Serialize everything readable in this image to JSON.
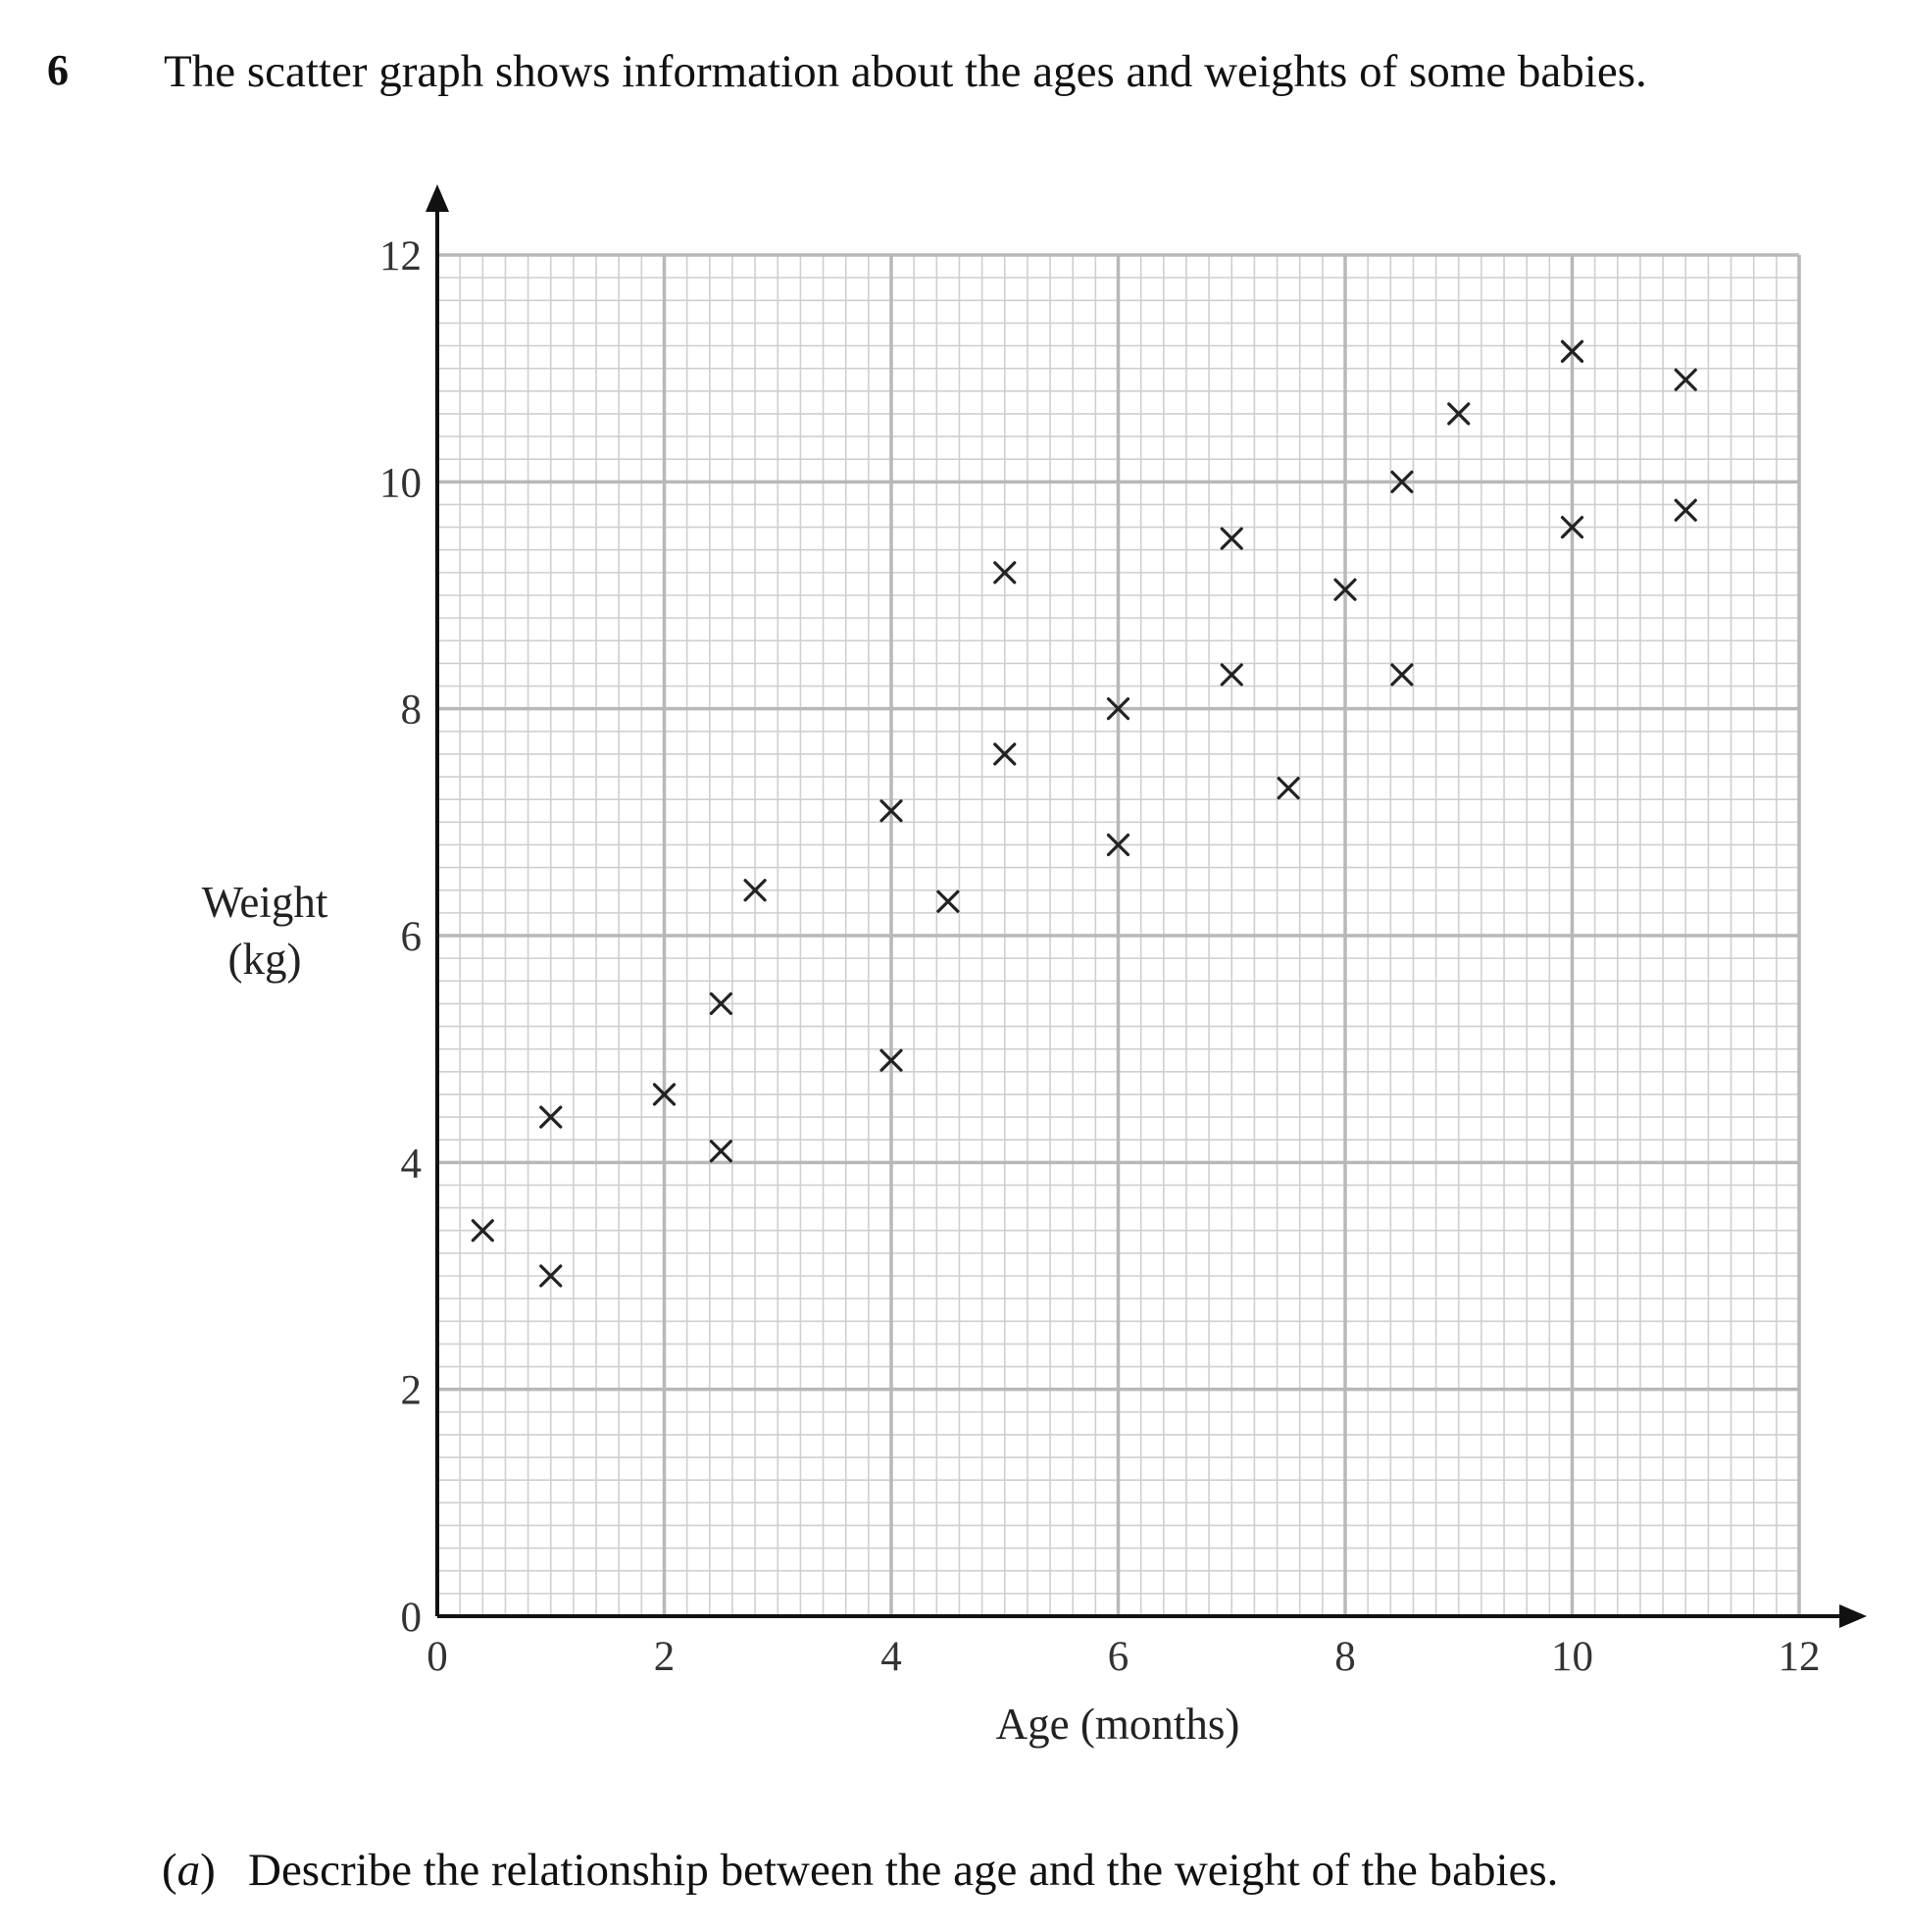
{
  "question": {
    "number": "6",
    "text": "The scatter graph shows information about the ages and weights of some babies."
  },
  "part_a": {
    "label_open": "(",
    "label_letter": "a",
    "label_close": ")",
    "text": "Describe the relationship between the age and the weight of the babies."
  },
  "chart_data": {
    "type": "scatter",
    "title": "",
    "xlabel": "Age (months)",
    "ylabel_lines": [
      "Weight",
      "(kg)"
    ],
    "xlim": [
      0,
      12
    ],
    "ylim": [
      0,
      12
    ],
    "xticks": [
      0,
      2,
      4,
      6,
      8,
      10,
      12
    ],
    "yticks": [
      0,
      2,
      4,
      6,
      8,
      10,
      12
    ],
    "grid": true,
    "marker": "cross",
    "colors": {
      "major_grid": "#b8b8b8",
      "minor_grid": "#cfcfcf",
      "axis": "#111111",
      "marker": "#222222"
    },
    "points": [
      {
        "x": 0.4,
        "y": 3.4
      },
      {
        "x": 1.0,
        "y": 4.4
      },
      {
        "x": 1.0,
        "y": 3.0
      },
      {
        "x": 2.0,
        "y": 4.6
      },
      {
        "x": 2.5,
        "y": 5.4
      },
      {
        "x": 2.5,
        "y": 4.1
      },
      {
        "x": 2.8,
        "y": 6.4
      },
      {
        "x": 4.0,
        "y": 7.1
      },
      {
        "x": 4.0,
        "y": 4.9
      },
      {
        "x": 4.5,
        "y": 6.3
      },
      {
        "x": 5.0,
        "y": 9.2
      },
      {
        "x": 5.0,
        "y": 7.6
      },
      {
        "x": 6.0,
        "y": 8.0
      },
      {
        "x": 6.0,
        "y": 6.8
      },
      {
        "x": 7.0,
        "y": 9.5
      },
      {
        "x": 7.0,
        "y": 8.3
      },
      {
        "x": 7.5,
        "y": 7.3
      },
      {
        "x": 8.0,
        "y": 9.05
      },
      {
        "x": 8.5,
        "y": 10.0
      },
      {
        "x": 8.5,
        "y": 8.3
      },
      {
        "x": 9.0,
        "y": 10.6
      },
      {
        "x": 10.0,
        "y": 11.15
      },
      {
        "x": 10.0,
        "y": 9.6
      },
      {
        "x": 11.0,
        "y": 10.9
      },
      {
        "x": 11.0,
        "y": 9.75
      }
    ]
  }
}
